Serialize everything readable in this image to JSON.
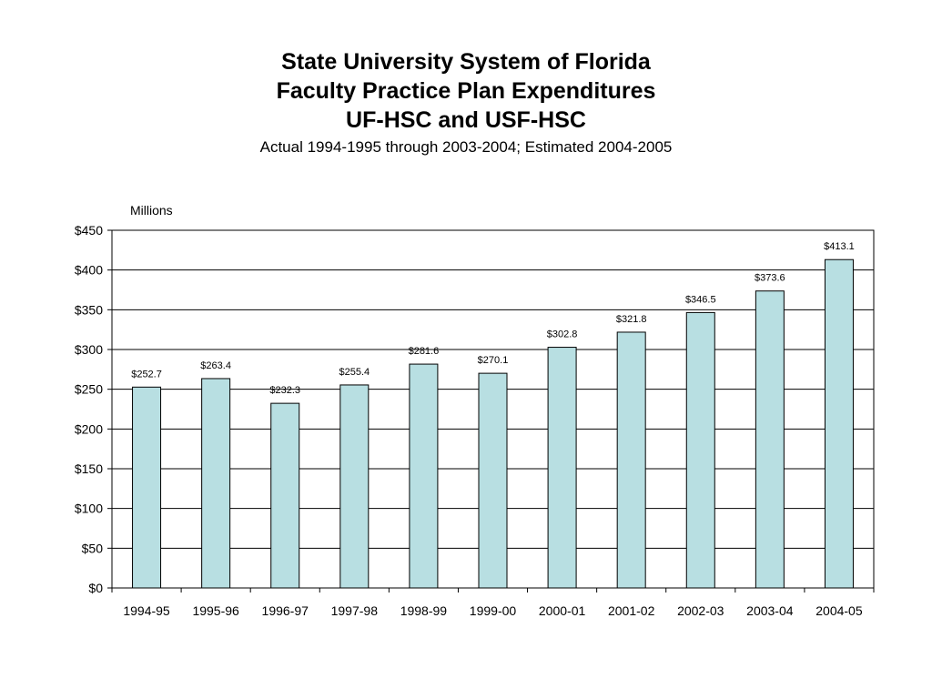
{
  "title": {
    "line1": "State University System of Florida",
    "line2": "Faculty Practice Plan Expenditures",
    "line3": "UF-HSC and USF-HSC",
    "subtitle": "Actual 1994-1995 through 2003-2004; Estimated 2004-2005"
  },
  "chart_data": {
    "type": "bar",
    "title": "State University System of Florida Faculty Practice Plan Expenditures UF-HSC and USF-HSC",
    "subtitle": "Actual 1994-1995 through 2003-2004; Estimated 2004-2005",
    "ylabel": "Millions",
    "xlabel": "",
    "categories": [
      "1994-95",
      "1995-96",
      "1996-97",
      "1997-98",
      "1998-99",
      "1999-00",
      "2000-01",
      "2001-02",
      "2002-03",
      "2003-04",
      "2004-05"
    ],
    "values": [
      252.7,
      263.4,
      232.3,
      255.4,
      281.6,
      270.1,
      302.8,
      321.8,
      346.5,
      373.6,
      413.1
    ],
    "data_labels": [
      "$252.7",
      "$263.4",
      "$232.3",
      "$255.4",
      "$281.6",
      "$270.1",
      "$302.8",
      "$321.8",
      "$346.5",
      "$373.6",
      "$413.1"
    ],
    "yticks": [
      0,
      50,
      100,
      150,
      200,
      250,
      300,
      350,
      400,
      450
    ],
    "ytick_labels": [
      "$0",
      "$50",
      "$100",
      "$150",
      "$200",
      "$250",
      "$300",
      "$350",
      "$400",
      "$450"
    ],
    "ylim": [
      0,
      450
    ],
    "grid": true,
    "bar_color": "#b8dfe2",
    "bar_edge_color": "#000000"
  }
}
